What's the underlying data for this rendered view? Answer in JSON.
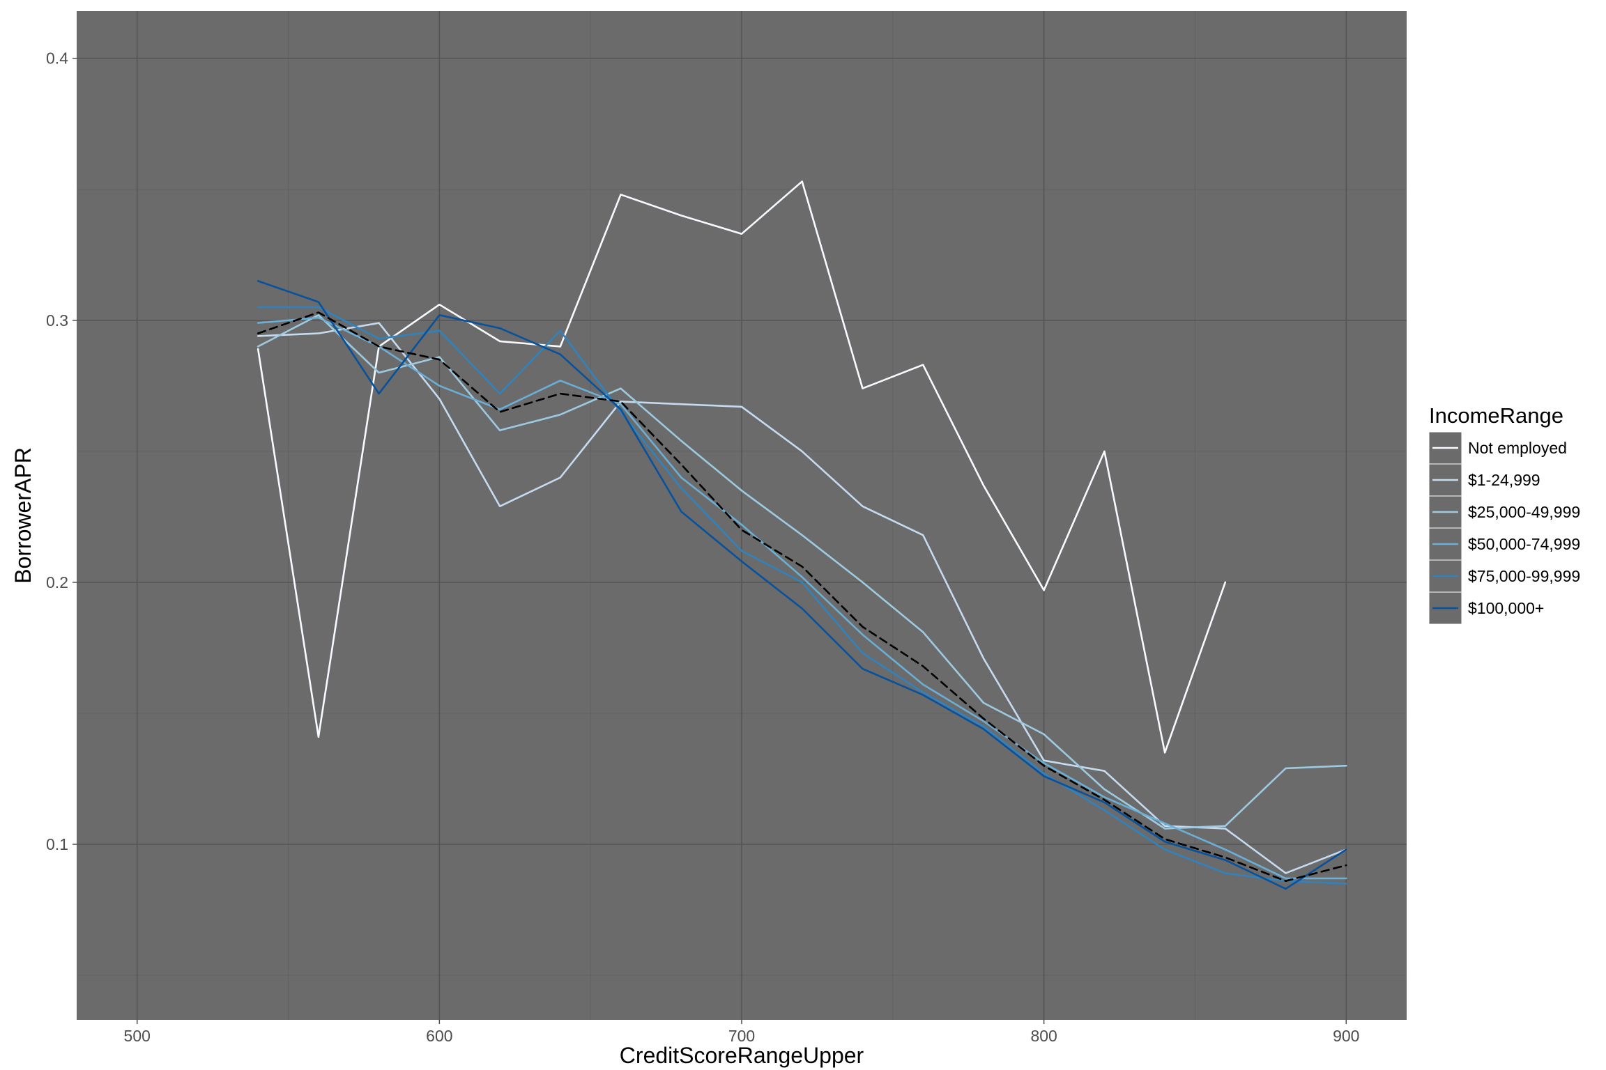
{
  "chart_data": {
    "type": "line",
    "title": "",
    "xlabel": "CreditScoreRangeUpper",
    "ylabel": "BorrowerAPR",
    "xlim": [
      480,
      920
    ],
    "ylim": [
      0.033,
      0.418
    ],
    "x_ticks": [
      500,
      600,
      700,
      800,
      900
    ],
    "y_ticks": [
      0.1,
      0.2,
      0.3,
      0.4
    ],
    "x_tick_labels": [
      "500",
      "600",
      "700",
      "800",
      "900"
    ],
    "y_tick_labels": [
      "0.1",
      "0.2",
      "0.3",
      "0.4"
    ],
    "grid": true,
    "panel_color": "#6b6b6b",
    "legend_position": "right",
    "legend": {
      "title": "IncomeRange",
      "entries": [
        "Not employed",
        "$1-24,999",
        "$25,000-49,999",
        "$50,000-74,999",
        "$75,000-99,999",
        "$100,000+"
      ]
    },
    "series": [
      {
        "name": "Not employed",
        "color": "#f7fbff",
        "x": [
          540,
          560,
          580,
          600,
          620,
          640,
          660,
          680,
          700,
          720,
          740,
          760,
          780,
          800,
          820,
          840,
          860
        ],
        "y": [
          0.289,
          0.141,
          0.29,
          0.306,
          0.292,
          0.29,
          0.348,
          0.34,
          0.333,
          0.353,
          0.274,
          0.283,
          0.237,
          0.197,
          0.25,
          0.135,
          0.2
        ]
      },
      {
        "name": "$1-24,999",
        "color": "#c6dbef",
        "x": [
          540,
          560,
          580,
          600,
          620,
          640,
          660,
          680,
          700,
          720,
          740,
          760,
          780,
          800,
          820,
          840,
          860,
          880,
          900
        ],
        "y": [
          0.294,
          0.295,
          0.299,
          0.27,
          0.229,
          0.24,
          0.269,
          0.268,
          0.267,
          0.25,
          0.229,
          0.218,
          0.171,
          0.132,
          0.128,
          0.107,
          0.106,
          0.089,
          0.098
        ]
      },
      {
        "name": "$25,000-49,999",
        "color": "#9ecae1",
        "x": [
          540,
          560,
          580,
          600,
          620,
          640,
          660,
          680,
          700,
          720,
          740,
          760,
          780,
          800,
          820,
          840,
          860,
          880,
          900
        ],
        "y": [
          0.29,
          0.302,
          0.28,
          0.286,
          0.258,
          0.264,
          0.274,
          0.254,
          0.235,
          0.218,
          0.2,
          0.181,
          0.154,
          0.142,
          0.121,
          0.106,
          0.107,
          0.129,
          0.13
        ]
      },
      {
        "name": "$50,000-74,999",
        "color": "#6baed6",
        "x": [
          540,
          560,
          580,
          600,
          620,
          640,
          660,
          680,
          700,
          720,
          740,
          760,
          780,
          800,
          820,
          840,
          860,
          880,
          900
        ],
        "y": [
          0.299,
          0.301,
          0.29,
          0.275,
          0.266,
          0.277,
          0.268,
          0.24,
          0.222,
          0.202,
          0.18,
          0.161,
          0.147,
          0.131,
          0.118,
          0.108,
          0.098,
          0.087,
          0.087
        ]
      },
      {
        "name": "$75,000-99,999",
        "color": "#3182bd",
        "x": [
          540,
          560,
          580,
          600,
          620,
          640,
          660,
          680,
          700,
          720,
          740,
          760,
          780,
          800,
          820,
          840,
          860,
          880,
          900
        ],
        "y": [
          0.305,
          0.305,
          0.293,
          0.296,
          0.272,
          0.296,
          0.265,
          0.236,
          0.212,
          0.2,
          0.173,
          0.158,
          0.145,
          0.127,
          0.113,
          0.098,
          0.089,
          0.086,
          0.085
        ]
      },
      {
        "name": "$100,000+",
        "color": "#08519c",
        "x": [
          540,
          560,
          580,
          600,
          620,
          640,
          660,
          680,
          700,
          720,
          740,
          760,
          780,
          800,
          820,
          840,
          860,
          880,
          900
        ],
        "y": [
          0.315,
          0.307,
          0.272,
          0.302,
          0.297,
          0.287,
          0.266,
          0.227,
          0.208,
          0.19,
          0.167,
          0.157,
          0.144,
          0.126,
          0.116,
          0.101,
          0.094,
          0.083,
          0.098
        ]
      },
      {
        "name": "",
        "color": "#000000",
        "dashed": true,
        "x": [
          540,
          560,
          580,
          600,
          620,
          640,
          660,
          680,
          700,
          720,
          740,
          760,
          780,
          800,
          820,
          840,
          860,
          880,
          900
        ],
        "y": [
          0.295,
          0.303,
          0.29,
          0.285,
          0.265,
          0.272,
          0.269,
          0.245,
          0.22,
          0.206,
          0.183,
          0.168,
          0.148,
          0.13,
          0.117,
          0.102,
          0.095,
          0.086,
          0.092
        ]
      }
    ]
  }
}
